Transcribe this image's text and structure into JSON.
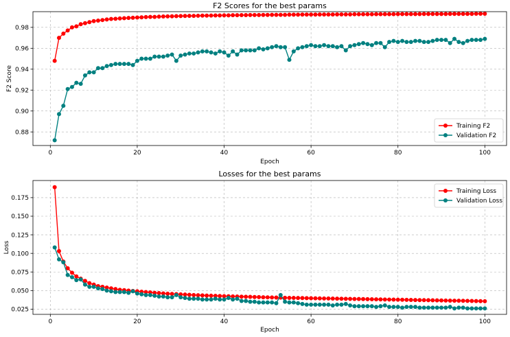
{
  "chart_data": [
    {
      "type": "line",
      "title": "F2 Scores for the best params",
      "xlabel": "Epoch",
      "ylabel": "F2 Score",
      "xlim": [
        -4,
        105
      ],
      "ylim": [
        0.867,
        0.995
      ],
      "xticks": [
        0,
        20,
        40,
        60,
        80,
        100
      ],
      "yticks": [
        0.88,
        0.9,
        0.92,
        0.94,
        0.96,
        0.98
      ],
      "ytick_labels": [
        "0.88",
        "0.90",
        "0.92",
        "0.94",
        "0.96",
        "0.98"
      ],
      "grid": true,
      "legend_position": "lower-right",
      "x": [
        1,
        2,
        3,
        4,
        5,
        6,
        7,
        8,
        9,
        10,
        11,
        12,
        13,
        14,
        15,
        16,
        17,
        18,
        19,
        20,
        21,
        22,
        23,
        24,
        25,
        26,
        27,
        28,
        29,
        30,
        31,
        32,
        33,
        34,
        35,
        36,
        37,
        38,
        39,
        40,
        41,
        42,
        43,
        44,
        45,
        46,
        47,
        48,
        49,
        50,
        51,
        52,
        53,
        54,
        55,
        56,
        57,
        58,
        59,
        60,
        61,
        62,
        63,
        64,
        65,
        66,
        67,
        68,
        69,
        70,
        71,
        72,
        73,
        74,
        75,
        76,
        77,
        78,
        79,
        80,
        81,
        82,
        83,
        84,
        85,
        86,
        87,
        88,
        89,
        90,
        91,
        92,
        93,
        94,
        95,
        96,
        97,
        98,
        99,
        100
      ],
      "series": [
        {
          "name": "Training F2",
          "color": "#ff0000",
          "values": [
            0.948,
            0.97,
            0.974,
            0.977,
            0.98,
            0.981,
            0.983,
            0.984,
            0.985,
            0.986,
            0.9865,
            0.987,
            0.9875,
            0.988,
            0.9882,
            0.9885,
            0.9888,
            0.989,
            0.9892,
            0.9894,
            0.9896,
            0.9898,
            0.99,
            0.99,
            0.9902,
            0.9904,
            0.9905,
            0.9906,
            0.9907,
            0.9908,
            0.9909,
            0.991,
            0.991,
            0.9911,
            0.9912,
            0.9912,
            0.9913,
            0.9914,
            0.9914,
            0.9915,
            0.9915,
            0.9916,
            0.9916,
            0.9917,
            0.9917,
            0.9918,
            0.9918,
            0.9918,
            0.9919,
            0.9919,
            0.992,
            0.992,
            0.992,
            0.992,
            0.9921,
            0.9921,
            0.9921,
            0.9922,
            0.9922,
            0.9922,
            0.9922,
            0.9923,
            0.9923,
            0.9923,
            0.9923,
            0.9924,
            0.9924,
            0.9924,
            0.9924,
            0.9925,
            0.9925,
            0.9925,
            0.9925,
            0.9925,
            0.9926,
            0.9926,
            0.9926,
            0.9926,
            0.9926,
            0.9927,
            0.9927,
            0.9927,
            0.9927,
            0.9927,
            0.9927,
            0.9928,
            0.9928,
            0.9928,
            0.9928,
            0.9928,
            0.9928,
            0.9929,
            0.9929,
            0.9929,
            0.9929,
            0.9929,
            0.9929,
            0.993,
            0.993,
            0.993
          ]
        },
        {
          "name": "Validation F2",
          "color": "#008080",
          "values": [
            0.872,
            0.897,
            0.905,
            0.921,
            0.923,
            0.927,
            0.926,
            0.934,
            0.937,
            0.937,
            0.941,
            0.941,
            0.943,
            0.944,
            0.945,
            0.945,
            0.945,
            0.945,
            0.944,
            0.948,
            0.95,
            0.95,
            0.95,
            0.952,
            0.952,
            0.952,
            0.953,
            0.954,
            0.948,
            0.953,
            0.954,
            0.955,
            0.955,
            0.956,
            0.957,
            0.957,
            0.956,
            0.955,
            0.957,
            0.956,
            0.953,
            0.957,
            0.954,
            0.958,
            0.958,
            0.958,
            0.958,
            0.96,
            0.959,
            0.96,
            0.961,
            0.962,
            0.961,
            0.961,
            0.949,
            0.957,
            0.96,
            0.961,
            0.962,
            0.963,
            0.962,
            0.962,
            0.963,
            0.962,
            0.962,
            0.961,
            0.962,
            0.958,
            0.962,
            0.963,
            0.964,
            0.965,
            0.964,
            0.963,
            0.965,
            0.965,
            0.961,
            0.966,
            0.967,
            0.966,
            0.967,
            0.966,
            0.966,
            0.967,
            0.967,
            0.966,
            0.966,
            0.967,
            0.968,
            0.968,
            0.968,
            0.965,
            0.969,
            0.966,
            0.965,
            0.967,
            0.968,
            0.968,
            0.968,
            0.969
          ]
        }
      ]
    },
    {
      "type": "line",
      "title": "Losses for the best params",
      "xlabel": "Epoch",
      "ylabel": "Loss",
      "xlim": [
        -4,
        105
      ],
      "ylim": [
        0.018,
        0.198
      ],
      "xticks": [
        0,
        20,
        40,
        60,
        80,
        100
      ],
      "yticks": [
        0.025,
        0.05,
        0.075,
        0.1,
        0.125,
        0.15,
        0.175
      ],
      "ytick_labels": [
        "0.025",
        "0.050",
        "0.075",
        "0.100",
        "0.125",
        "0.150",
        "0.175"
      ],
      "grid": true,
      "legend_position": "upper-right",
      "x": [
        1,
        2,
        3,
        4,
        5,
        6,
        7,
        8,
        9,
        10,
        11,
        12,
        13,
        14,
        15,
        16,
        17,
        18,
        19,
        20,
        21,
        22,
        23,
        24,
        25,
        26,
        27,
        28,
        29,
        30,
        31,
        32,
        33,
        34,
        35,
        36,
        37,
        38,
        39,
        40,
        41,
        42,
        43,
        44,
        45,
        46,
        47,
        48,
        49,
        50,
        51,
        52,
        53,
        54,
        55,
        56,
        57,
        58,
        59,
        60,
        61,
        62,
        63,
        64,
        65,
        66,
        67,
        68,
        69,
        70,
        71,
        72,
        73,
        74,
        75,
        76,
        77,
        78,
        79,
        80,
        81,
        82,
        83,
        84,
        85,
        86,
        87,
        88,
        89,
        90,
        91,
        92,
        93,
        94,
        95,
        96,
        97,
        98,
        99,
        100
      ],
      "series": [
        {
          "name": "Training Loss",
          "color": "#ff0000",
          "values": [
            0.189,
            0.103,
            0.089,
            0.08,
            0.074,
            0.069,
            0.066,
            0.063,
            0.06,
            0.058,
            0.056,
            0.055,
            0.054,
            0.053,
            0.052,
            0.051,
            0.0505,
            0.05,
            0.0495,
            0.049,
            0.0485,
            0.048,
            0.0475,
            0.047,
            0.0466,
            0.0462,
            0.0458,
            0.0455,
            0.0452,
            0.0449,
            0.0446,
            0.0443,
            0.044,
            0.0437,
            0.0435,
            0.0433,
            0.0431,
            0.0429,
            0.0427,
            0.0425,
            0.0423,
            0.0421,
            0.042,
            0.0418,
            0.0416,
            0.0415,
            0.0413,
            0.0412,
            0.041,
            0.0409,
            0.0407,
            0.0406,
            0.0405,
            0.0403,
            0.0402,
            0.0401,
            0.04,
            0.0399,
            0.0398,
            0.0397,
            0.0396,
            0.0395,
            0.0394,
            0.0393,
            0.0392,
            0.0391,
            0.039,
            0.0389,
            0.0388,
            0.0387,
            0.0386,
            0.0385,
            0.0384,
            0.0383,
            0.0382,
            0.0381,
            0.038,
            0.0379,
            0.0378,
            0.0377,
            0.0376,
            0.0375,
            0.0374,
            0.0373,
            0.0372,
            0.0371,
            0.037,
            0.0369,
            0.0368,
            0.0367,
            0.0366,
            0.0365,
            0.0364,
            0.0363,
            0.0362,
            0.0361,
            0.036,
            0.0359,
            0.0358,
            0.0357
          ]
        },
        {
          "name": "Validation Loss",
          "color": "#008080",
          "values": [
            0.108,
            0.092,
            0.088,
            0.071,
            0.068,
            0.064,
            0.065,
            0.058,
            0.055,
            0.055,
            0.053,
            0.052,
            0.05,
            0.049,
            0.048,
            0.048,
            0.048,
            0.047,
            0.049,
            0.046,
            0.045,
            0.044,
            0.044,
            0.043,
            0.042,
            0.042,
            0.041,
            0.041,
            0.044,
            0.041,
            0.04,
            0.039,
            0.039,
            0.039,
            0.038,
            0.038,
            0.038,
            0.039,
            0.038,
            0.038,
            0.04,
            0.038,
            0.039,
            0.036,
            0.036,
            0.035,
            0.035,
            0.034,
            0.034,
            0.034,
            0.034,
            0.033,
            0.044,
            0.035,
            0.034,
            0.034,
            0.033,
            0.032,
            0.031,
            0.031,
            0.031,
            0.031,
            0.031,
            0.031,
            0.03,
            0.031,
            0.031,
            0.032,
            0.03,
            0.029,
            0.029,
            0.029,
            0.029,
            0.029,
            0.028,
            0.029,
            0.03,
            0.028,
            0.028,
            0.028,
            0.027,
            0.028,
            0.028,
            0.028,
            0.027,
            0.027,
            0.027,
            0.027,
            0.027,
            0.027,
            0.027,
            0.028,
            0.026,
            0.027,
            0.027,
            0.026,
            0.026,
            0.026,
            0.026,
            0.026
          ]
        }
      ]
    }
  ]
}
